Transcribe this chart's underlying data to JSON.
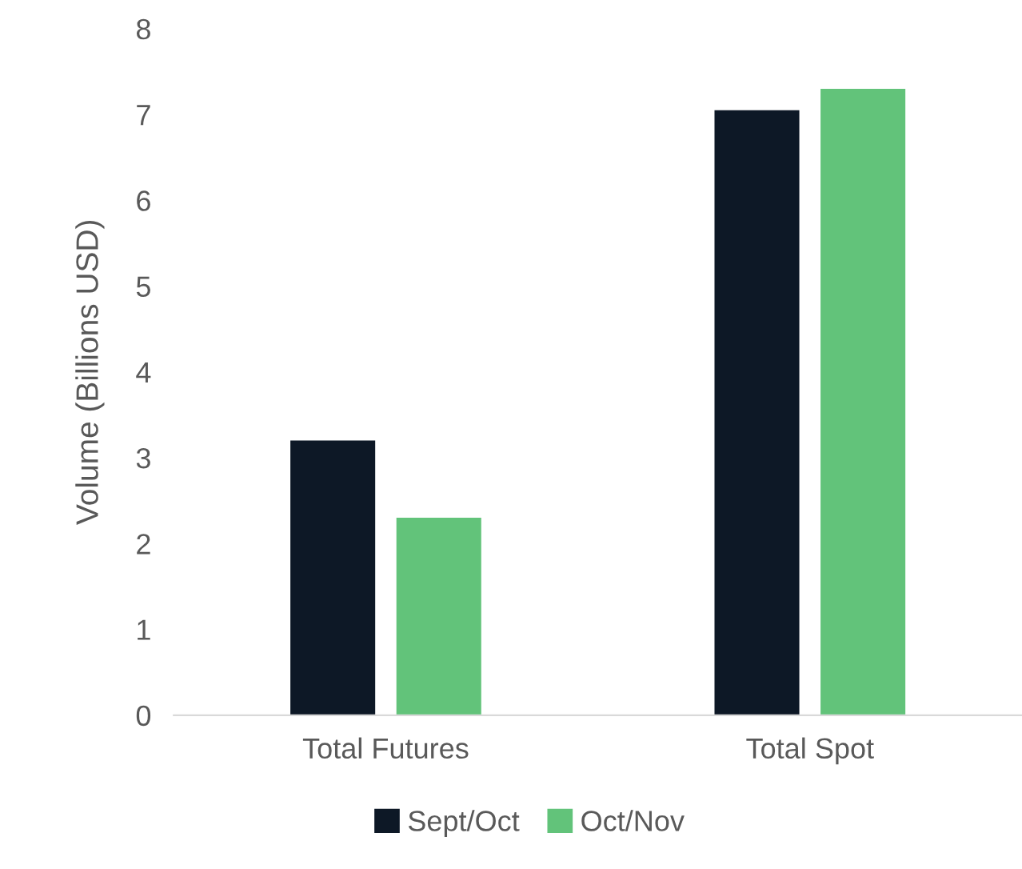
{
  "chart_data": {
    "type": "bar",
    "ylabel": "Volume (Billions USD)",
    "categories": [
      "Total Futures",
      "Total Spot"
    ],
    "series": [
      {
        "name": "Sept/Oct",
        "color": "#0d1826",
        "values": [
          3.2,
          7.05
        ]
      },
      {
        "name": "Oct/Nov",
        "color": "#62c37a",
        "values": [
          2.3,
          7.3
        ]
      }
    ],
    "ylim": [
      0,
      8
    ],
    "yticks": [
      0,
      1,
      2,
      3,
      4,
      5,
      6,
      7,
      8
    ],
    "grid": false,
    "legend": "bottom"
  }
}
